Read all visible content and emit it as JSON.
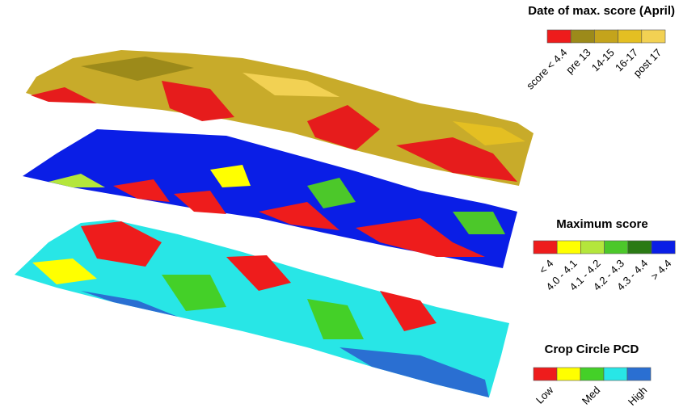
{
  "legends": [
    {
      "title": "Date of max. score (April)",
      "colors": [
        "#ee1c1c",
        "#9c8a1a",
        "#c4a41c",
        "#e4bf22",
        "#f2d153"
      ],
      "labels": [
        "score < 4.4",
        "pre 13",
        "14-15",
        "16-17",
        "post 17"
      ]
    },
    {
      "title": "Maximum score",
      "colors": [
        "#ee1c1c",
        "#ffff00",
        "#b4e63c",
        "#4cc82a",
        "#2a7a14",
        "#0a1ee6"
      ],
      "labels": [
        "< 4",
        "4.0 - 4.1",
        "4.1 - 4.2",
        "4.2 - 4.3",
        "4.3 - 4.4",
        "> 4.4"
      ]
    },
    {
      "title": "Crop Circle PCD",
      "colors": [
        "#ee1c1c",
        "#ffff00",
        "#44d028",
        "#28e6e6",
        "#2a6fd2"
      ],
      "labels": [
        "Low",
        "Med",
        "High"
      ]
    }
  ]
}
